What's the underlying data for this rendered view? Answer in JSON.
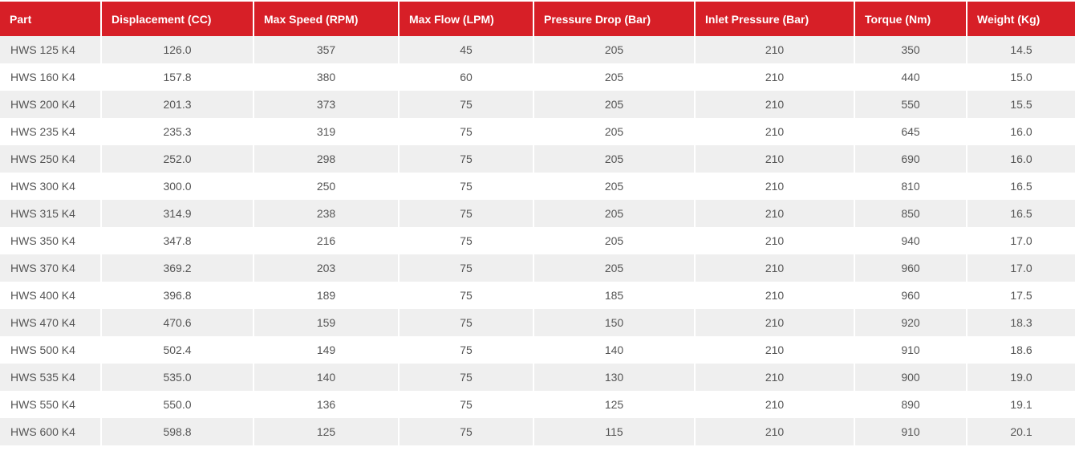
{
  "table": {
    "columns": [
      "Part",
      "Displacement (CC)",
      "Max Speed (RPM)",
      "Max Flow (LPM)",
      "Pressure Drop (Bar)",
      "Inlet Pressure (Bar)",
      "Torque (Nm)",
      "Weight (Kg)"
    ],
    "rows": [
      [
        "HWS 125 K4",
        "126.0",
        "357",
        "45",
        "205",
        "210",
        "350",
        "14.5"
      ],
      [
        "HWS 160 K4",
        "157.8",
        "380",
        "60",
        "205",
        "210",
        "440",
        "15.0"
      ],
      [
        "HWS 200 K4",
        "201.3",
        "373",
        "75",
        "205",
        "210",
        "550",
        "15.5"
      ],
      [
        "HWS 235 K4",
        "235.3",
        "319",
        "75",
        "205",
        "210",
        "645",
        "16.0"
      ],
      [
        "HWS 250 K4",
        "252.0",
        "298",
        "75",
        "205",
        "210",
        "690",
        "16.0"
      ],
      [
        "HWS 300 K4",
        "300.0",
        "250",
        "75",
        "205",
        "210",
        "810",
        "16.5"
      ],
      [
        "HWS 315 K4",
        "314.9",
        "238",
        "75",
        "205",
        "210",
        "850",
        "16.5"
      ],
      [
        "HWS 350 K4",
        "347.8",
        "216",
        "75",
        "205",
        "210",
        "940",
        "17.0"
      ],
      [
        "HWS 370 K4",
        "369.2",
        "203",
        "75",
        "205",
        "210",
        "960",
        "17.0"
      ],
      [
        "HWS 400 K4",
        "396.8",
        "189",
        "75",
        "185",
        "210",
        "960",
        "17.5"
      ],
      [
        "HWS 470 K4",
        "470.6",
        "159",
        "75",
        "150",
        "210",
        "920",
        "18.3"
      ],
      [
        "HWS 500 K4",
        "502.4",
        "149",
        "75",
        "140",
        "210",
        "910",
        "18.6"
      ],
      [
        "HWS 535 K4",
        "535.0",
        "140",
        "75",
        "130",
        "210",
        "900",
        "19.0"
      ],
      [
        "HWS 550 K4",
        "550.0",
        "136",
        "75",
        "125",
        "210",
        "890",
        "19.1"
      ],
      [
        "HWS 600 K4",
        "598.8",
        "125",
        "75",
        "115",
        "210",
        "910",
        "20.1"
      ]
    ]
  }
}
